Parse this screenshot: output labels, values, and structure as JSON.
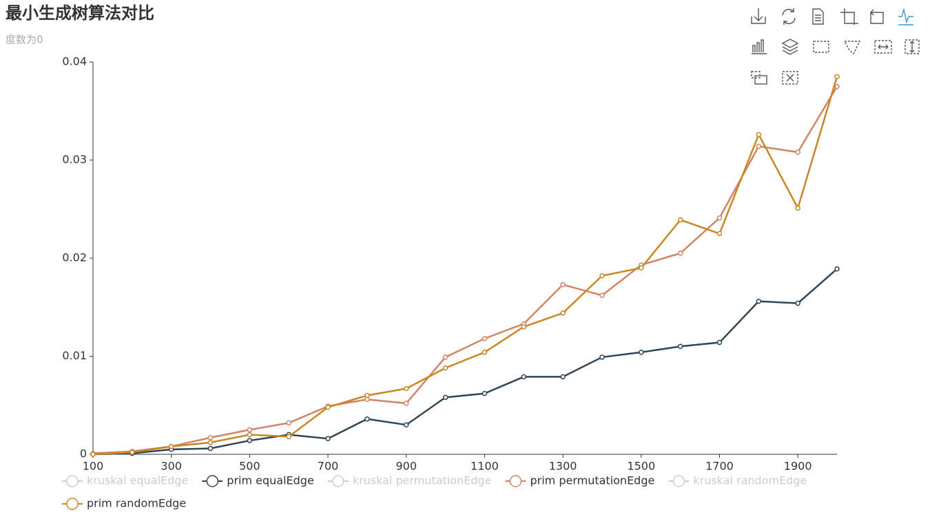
{
  "chart_data": {
    "type": "line",
    "title": "最小生成树算法对比",
    "subtitle": "度数为0",
    "x": [
      100,
      200,
      300,
      400,
      500,
      600,
      700,
      800,
      900,
      1000,
      1100,
      1200,
      1300,
      1400,
      1500,
      1600,
      1700,
      1800,
      1900,
      2000
    ],
    "xlim": [
      100,
      2000
    ],
    "xticks": [
      100,
      300,
      500,
      700,
      900,
      1100,
      1300,
      1500,
      1700,
      1900
    ],
    "ylim": [
      0,
      0.04
    ],
    "yticks": [
      0,
      0.01,
      0.02,
      0.03,
      0.04
    ],
    "grid": false,
    "legend": "bottom",
    "series": [
      {
        "name": "kruskal equalEdge",
        "color": "#cccccc",
        "hidden": true
      },
      {
        "name": "prim equalEdge",
        "color": "#2f4554",
        "values": [
          0,
          0.0001,
          0.0005,
          0.0006,
          0.0014,
          0.002,
          0.0016,
          0.0036,
          0.003,
          0.0058,
          0.0062,
          0.0079,
          0.0079,
          0.0099,
          0.0104,
          0.011,
          0.0114,
          0.0156,
          0.0154,
          0.0189
        ]
      },
      {
        "name": "kruskal permutationEdge",
        "color": "#cccccc",
        "hidden": true
      },
      {
        "name": "prim permutationEdge",
        "color": "#d48265",
        "values": [
          0.0001,
          0.0003,
          0.0008,
          0.0017,
          0.0025,
          0.0032,
          0.0049,
          0.0056,
          0.0052,
          0.0099,
          0.0118,
          0.0133,
          0.0173,
          0.0162,
          0.0193,
          0.0205,
          0.0241,
          0.0314,
          0.0308,
          0.0375
        ]
      },
      {
        "name": "kruskal randomEdge",
        "color": "#cccccc",
        "hidden": true
      },
      {
        "name": "prim randomEdge",
        "color": "#ca8622",
        "values": [
          0,
          0.0002,
          0.0008,
          0.0012,
          0.002,
          0.0018,
          0.0048,
          0.006,
          0.0067,
          0.0088,
          0.0104,
          0.013,
          0.0144,
          0.0182,
          0.019,
          0.0239,
          0.0225,
          0.0326,
          0.0251,
          0.0385
        ]
      }
    ]
  }
}
